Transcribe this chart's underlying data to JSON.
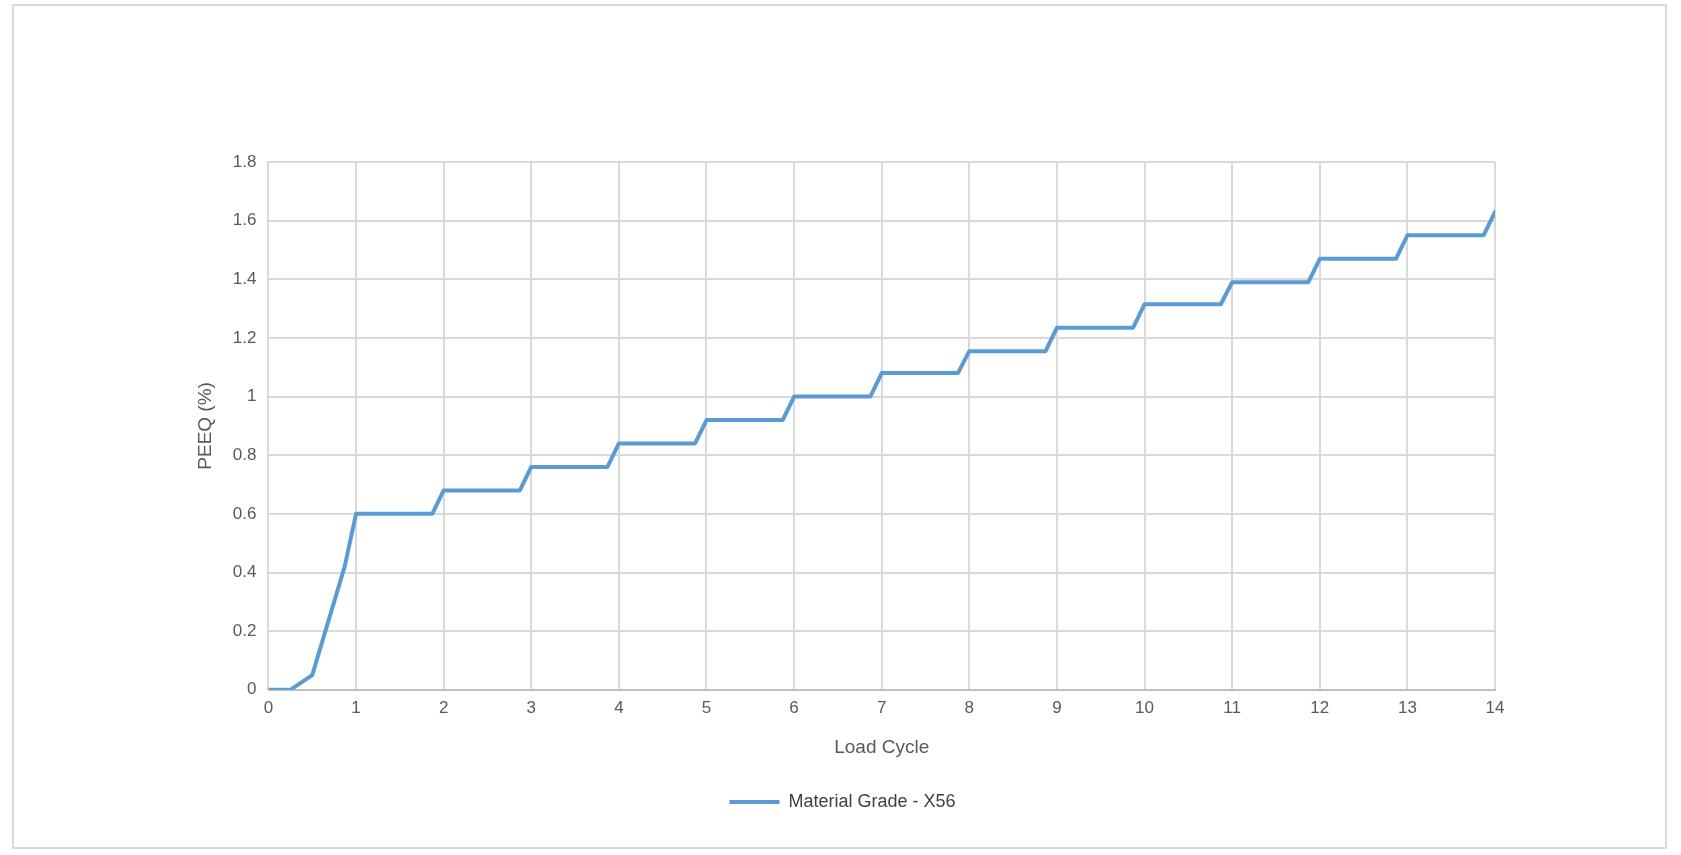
{
  "chart_data": {
    "type": "line",
    "xlabel": "Load Cycle",
    "ylabel": "PEEQ (%)",
    "xlim": [
      0,
      14
    ],
    "xticks": [
      0,
      1,
      2,
      3,
      4,
      5,
      6,
      7,
      8,
      9,
      10,
      11,
      12,
      13,
      14
    ],
    "ylim": [
      0,
      1.8
    ],
    "yticks": [
      0,
      0.2,
      0.4,
      0.6,
      0.8,
      1,
      1.2,
      1.4,
      1.6,
      1.8
    ],
    "grid": true,
    "legend": "bottom",
    "marker": "none",
    "line_style": "solid",
    "series": [
      {
        "name": "Material Grade - X56",
        "color": "#5b9bd5",
        "x": [
          0,
          0.25,
          0.5,
          0.87,
          1,
          1.87,
          2,
          2.87,
          3,
          3.87,
          4,
          4.87,
          5,
          5.87,
          6,
          6.87,
          7,
          7.87,
          8,
          8.87,
          9,
          9.87,
          10,
          10.87,
          11,
          11.87,
          12,
          12.87,
          13,
          13.87,
          14
        ],
        "values": [
          0,
          0,
          0.05,
          0.42,
          0.6,
          0.6,
          0.68,
          0.68,
          0.76,
          0.76,
          0.84,
          0.84,
          0.92,
          0.92,
          1.0,
          1.0,
          1.08,
          1.08,
          1.155,
          1.155,
          1.235,
          1.235,
          1.315,
          1.315,
          1.39,
          1.39,
          1.47,
          1.47,
          1.55,
          1.55,
          1.63
        ]
      }
    ]
  }
}
